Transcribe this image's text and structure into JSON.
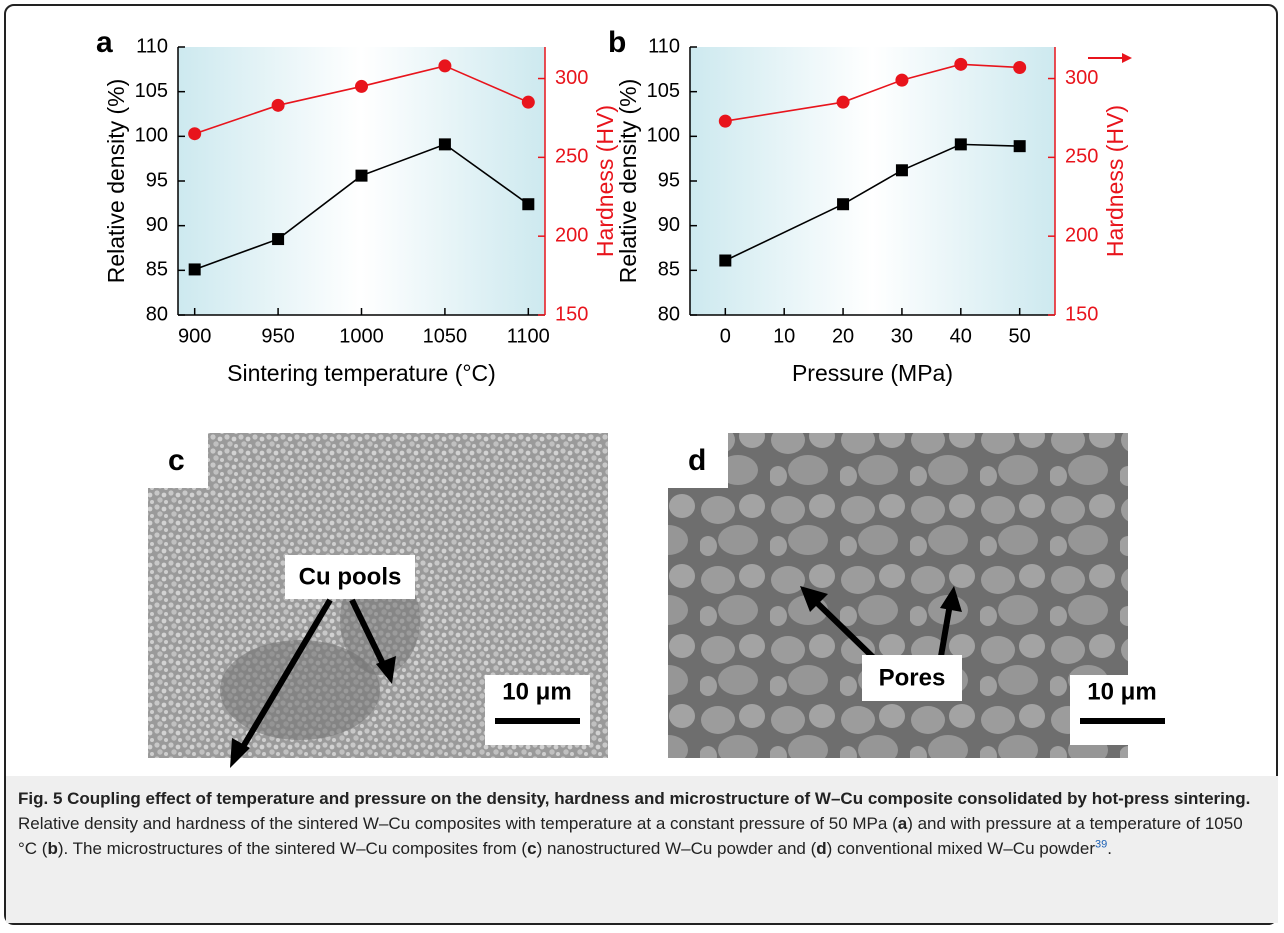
{
  "chart_data": [
    {
      "type": "line",
      "panel_label": "a",
      "xlabel": "Sintering temperature (°C)",
      "ylabel": "Relative density (%)",
      "y2label": "Hardness (HV)",
      "x": [
        900,
        950,
        1000,
        1050,
        1100
      ],
      "xlim": [
        890,
        1110
      ],
      "xticks": [
        900,
        950,
        1000,
        1050,
        1100
      ],
      "ylim": [
        80,
        110
      ],
      "yticks": [
        80,
        85,
        90,
        95,
        100,
        105,
        110
      ],
      "y2lim": [
        150,
        320
      ],
      "y2ticks": [
        150,
        200,
        250,
        300
      ],
      "y2color": "#e8141c",
      "series": [
        {
          "color": "#000000",
          "marker": "square",
          "values": [
            85.1,
            88.5,
            95.6,
            99.1,
            92.4
          ]
        },
        {
          "color": "#e8141c",
          "marker": "circle",
          "axis": "y2",
          "values": [
            265,
            283,
            295,
            308,
            285
          ]
        }
      ]
    },
    {
      "type": "line",
      "panel_label": "b",
      "xlabel": "Pressure (MPa)",
      "ylabel": "Relative density (%)",
      "y2label": "Hardness (HV)",
      "x": [
        0,
        20,
        30,
        40,
        50
      ],
      "xlim": [
        -6,
        56
      ],
      "xticks": [
        0,
        10,
        20,
        30,
        40,
        50
      ],
      "ylim": [
        80,
        110
      ],
      "yticks": [
        80,
        85,
        90,
        95,
        100,
        105,
        110
      ],
      "y2lim": [
        150,
        320
      ],
      "y2ticks": [
        150,
        200,
        250,
        300
      ],
      "y2color": "#e8141c",
      "series": [
        {
          "color": "#000000",
          "marker": "square",
          "values": [
            86.1,
            92.4,
            96.2,
            99.1,
            98.9
          ]
        },
        {
          "color": "#e8141c",
          "marker": "circle",
          "axis": "y2",
          "values": [
            273,
            285,
            299,
            309,
            307
          ]
        }
      ]
    }
  ],
  "images": [
    {
      "label": "c",
      "annotation": "Cu pools",
      "scale_bar": "10 μm"
    },
    {
      "label": "d",
      "annotation": "Pores",
      "scale_bar": "10 μm"
    }
  ],
  "caption": [
    {
      "text": "Fig. 5 Coupling effect of temperature and pressure on the density, hardness and microstructure of W–Cu composite consolidated by hot-press sintering.",
      "style": "bold"
    },
    {
      "text": " Relative density and hardness of the sintered W–Cu composites with temperature at a constant pressure of 50 MPa ("
    },
    {
      "text": "a",
      "style": "bold"
    },
    {
      "text": ") and with pressure at a temperature of 1050 °C ("
    },
    {
      "text": "b",
      "style": "bold"
    },
    {
      "text": "). The microstructures of the sintered W–Cu composites from ("
    },
    {
      "text": "c",
      "style": "bold"
    },
    {
      "text": ") nanostructured W–Cu powder and ("
    },
    {
      "text": "d",
      "style": "bold"
    },
    {
      "text": ") conventional mixed W–Cu powder"
    },
    {
      "text": "39",
      "style": "sup"
    },
    {
      "text": "."
    }
  ]
}
